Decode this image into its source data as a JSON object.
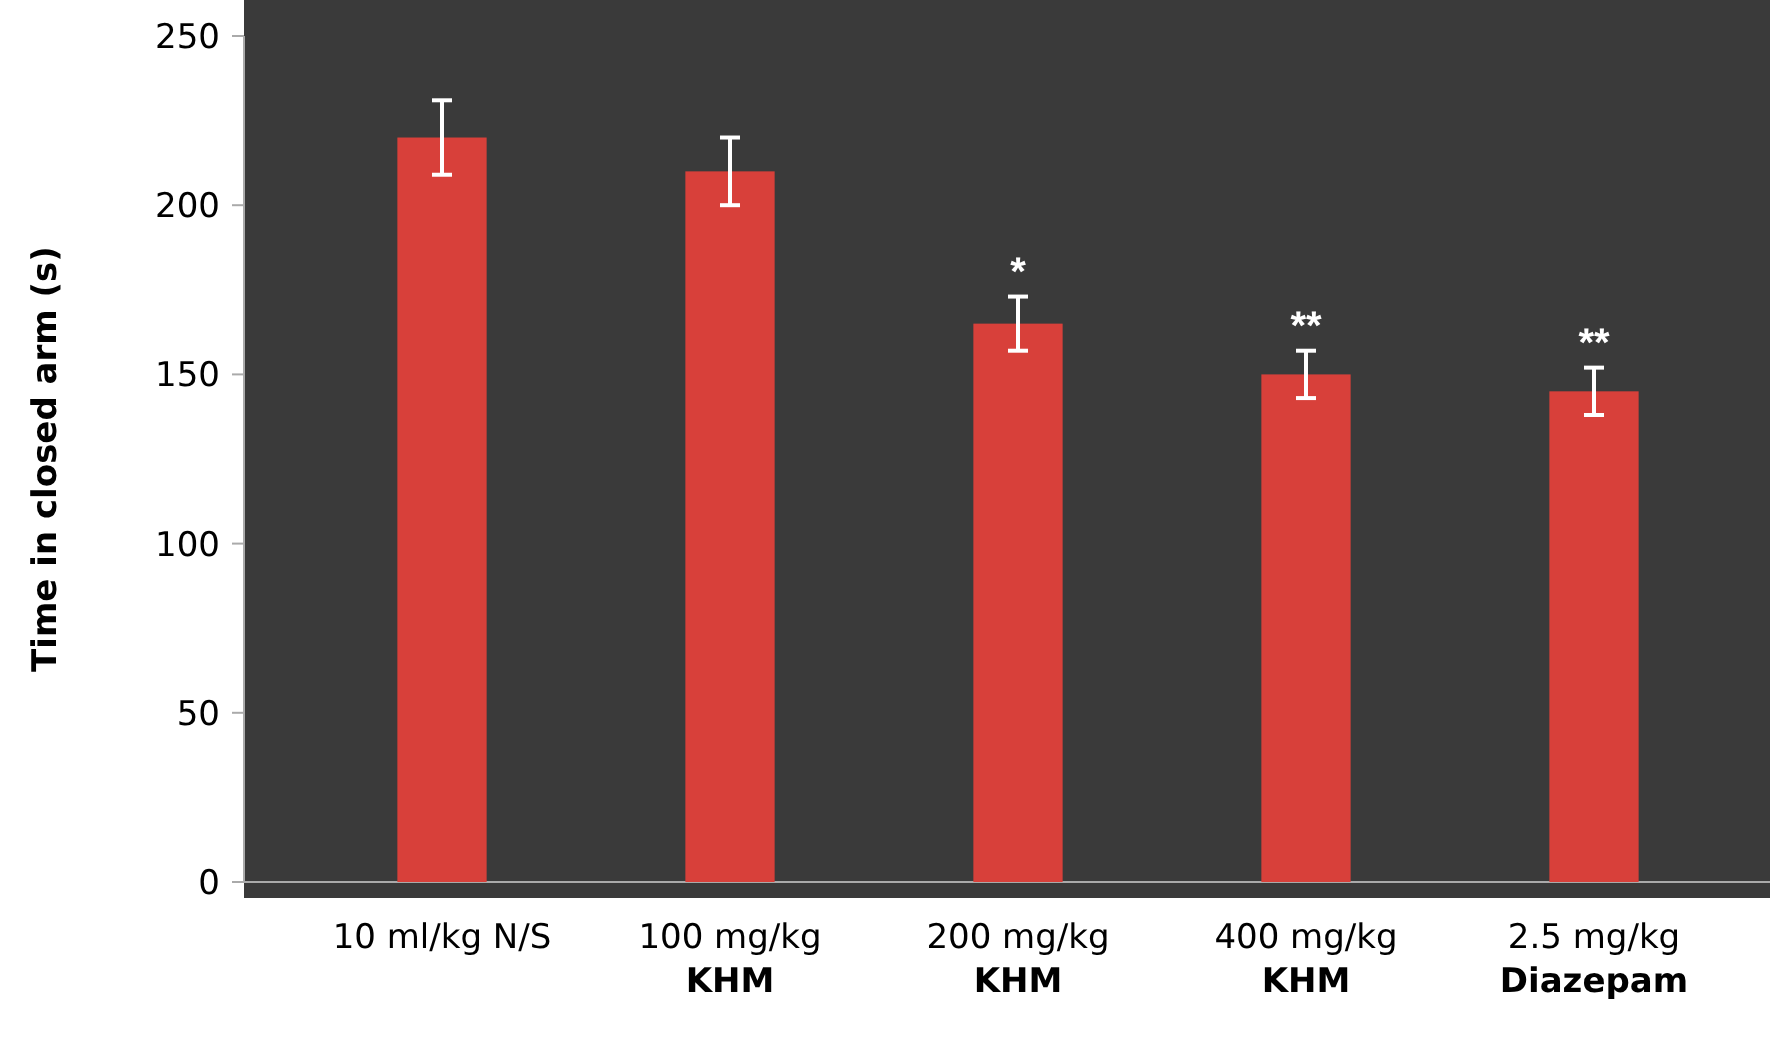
{
  "chart_data": {
    "type": "bar",
    "ylabel": "Time in closed arm (s)",
    "categories": [
      "10 ml/kg N/S",
      "100 mg/kg\nKHM",
      "200 mg/kg\nKHM",
      "400 mg/kg\nKHM",
      "2.5 mg/kg\nDiazepam"
    ],
    "values": [
      220,
      210,
      165,
      150,
      145
    ],
    "errors": [
      11,
      10,
      8,
      7,
      7
    ],
    "color": "#d8403a",
    "ylim": [
      0,
      250
    ],
    "yticks": [
      0,
      50,
      100,
      150,
      200,
      250
    ],
    "grid": false,
    "annotations": [
      {
        "text": "*",
        "x": "200 mg/kg\nKHM",
        "y": 173
      },
      {
        "text": "**",
        "x": "400 mg/kg\nKHM",
        "y": 157
      },
      {
        "text": "**",
        "x": "2.5 mg/kg\nDiazepam",
        "y": 152
      }
    ]
  }
}
